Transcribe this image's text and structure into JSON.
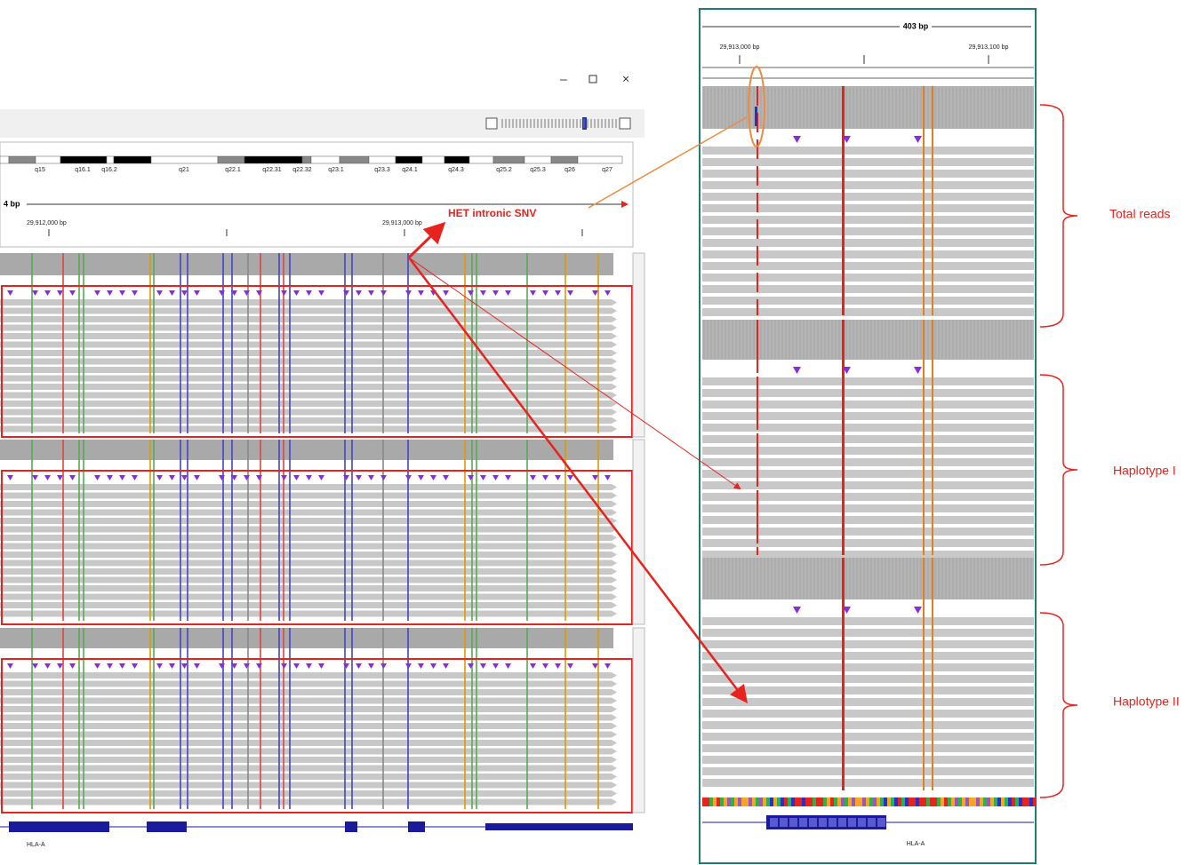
{
  "left_panel": {
    "cytobands": [
      "q15",
      "q16.1",
      "q16.2",
      "q21",
      "q22.1",
      "q22.31",
      "q22.32",
      "q23.1",
      "q23.3",
      "q24.1",
      "q24.3",
      "q25.2",
      "q25.3",
      "q26",
      "q27"
    ],
    "ruler": {
      "span": "4 bp",
      "positions": [
        "29,912,000 bp",
        "29,913,000 bp"
      ]
    },
    "gene": "HLA-A"
  },
  "annotation": "HET intronic SNV",
  "right_panel": {
    "ruler": {
      "span": "403 bp",
      "positions": [
        "29,913,000 bp",
        "29,913,100 bp"
      ]
    },
    "gene": "HLA-A",
    "groups": [
      "Total reads",
      "Haplotype I",
      "Haplotype II"
    ]
  }
}
